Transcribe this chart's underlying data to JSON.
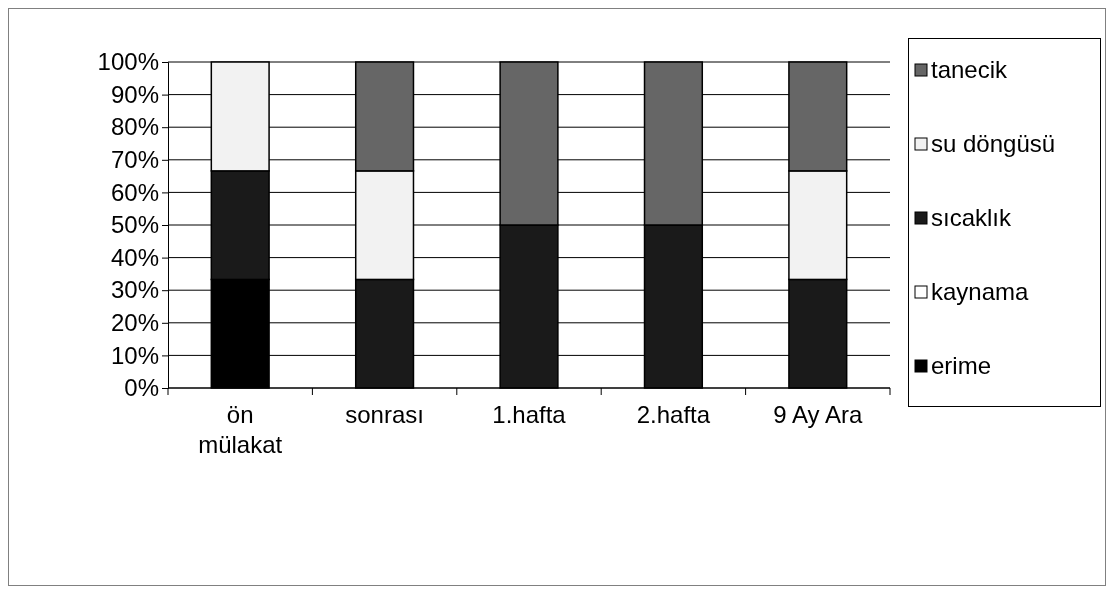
{
  "chart_data": {
    "type": "bar",
    "stacked": true,
    "categories": [
      "ön mülakat",
      "sonrası",
      "1.hafta",
      "2.hafta",
      "9 Ay Ara"
    ],
    "series": [
      {
        "name": "erime",
        "color": "#000000",
        "values": [
          33.3,
          0,
          0,
          0,
          0
        ]
      },
      {
        "name": "kaynama",
        "color": "#ffffff",
        "values": [
          0,
          0,
          0,
          0,
          0
        ]
      },
      {
        "name": "sıcaklık",
        "color": "#1a1a1a",
        "values": [
          33.3,
          33.3,
          50,
          50,
          33.3
        ]
      },
      {
        "name": "su döngüsü",
        "color": "#f2f2f2",
        "values": [
          33.4,
          33.3,
          0,
          0,
          33.3
        ]
      },
      {
        "name": "tanecik",
        "color": "#666666",
        "values": [
          0,
          33.4,
          50,
          50,
          33.4
        ]
      }
    ],
    "ylim": [
      0,
      100
    ],
    "yticks": [
      {
        "value": 0,
        "label": "0%"
      },
      {
        "value": 10,
        "label": "10%"
      },
      {
        "value": 20,
        "label": "20%"
      },
      {
        "value": 30,
        "label": "30%"
      },
      {
        "value": 40,
        "label": "40%"
      },
      {
        "value": 50,
        "label": "50%"
      },
      {
        "value": 60,
        "label": "60%"
      },
      {
        "value": 70,
        "label": "70%"
      },
      {
        "value": 80,
        "label": "80%"
      },
      {
        "value": 90,
        "label": "90%"
      },
      {
        "value": 100,
        "label": "100%"
      }
    ],
    "grid": "y",
    "legend": "right"
  }
}
